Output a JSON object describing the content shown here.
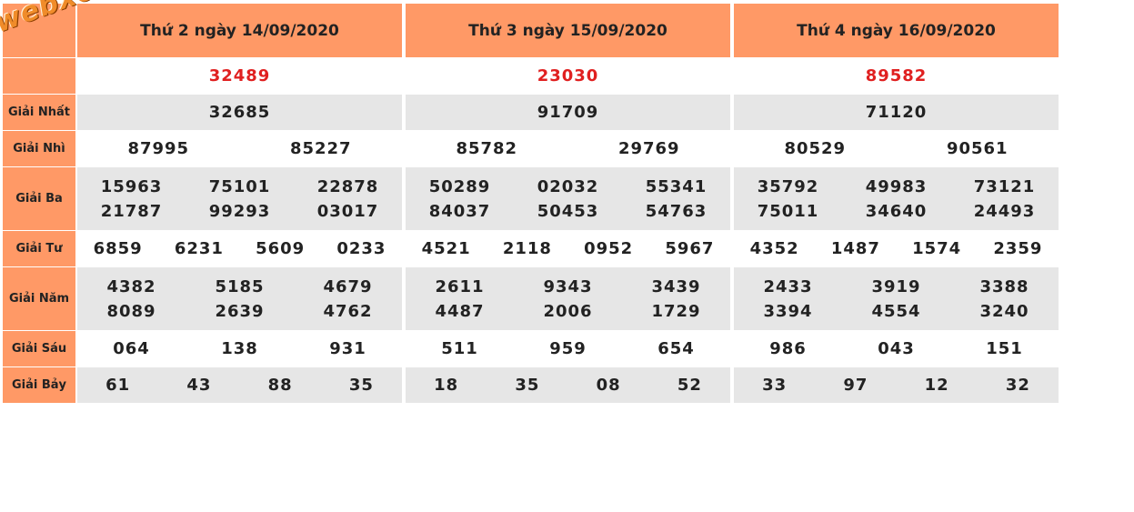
{
  "watermark": "webxoso.net",
  "labels": {
    "db": "",
    "nhat": "Giải Nhất",
    "nhi": "Giải Nhì",
    "ba": "Giải Ba",
    "tu": "Giải Tư",
    "nam": "Giải Năm",
    "sau": "Giải Sáu",
    "bay": "Giải Bảy"
  },
  "days": [
    {
      "header": "Thứ 2 ngày 14/09/2020",
      "db": "32489",
      "nhat": "32685",
      "nhi": [
        "87995",
        "85227"
      ],
      "ba": [
        "15963",
        "75101",
        "22878",
        "21787",
        "99293",
        "03017"
      ],
      "tu": [
        "6859",
        "6231",
        "5609",
        "0233"
      ],
      "nam": [
        "4382",
        "5185",
        "4679",
        "8089",
        "2639",
        "4762"
      ],
      "sau": [
        "064",
        "138",
        "931"
      ],
      "bay": [
        "61",
        "43",
        "88",
        "35"
      ]
    },
    {
      "header": "Thứ 3 ngày 15/09/2020",
      "db": "23030",
      "nhat": "91709",
      "nhi": [
        "85782",
        "29769"
      ],
      "ba": [
        "50289",
        "02032",
        "55341",
        "84037",
        "50453",
        "54763"
      ],
      "tu": [
        "4521",
        "2118",
        "0952",
        "5967"
      ],
      "nam": [
        "2611",
        "9343",
        "3439",
        "4487",
        "2006",
        "1729"
      ],
      "sau": [
        "511",
        "959",
        "654"
      ],
      "bay": [
        "18",
        "35",
        "08",
        "52"
      ]
    },
    {
      "header": "Thứ 4 ngày 16/09/2020",
      "db": "89582",
      "nhat": "71120",
      "nhi": [
        "80529",
        "90561"
      ],
      "ba": [
        "35792",
        "49983",
        "73121",
        "75011",
        "34640",
        "24493"
      ],
      "tu": [
        "4352",
        "1487",
        "1574",
        "2359"
      ],
      "nam": [
        "2433",
        "3919",
        "3388",
        "3394",
        "4554",
        "3240"
      ],
      "sau": [
        "986",
        "043",
        "151"
      ],
      "bay": [
        "33",
        "97",
        "12",
        "32"
      ]
    }
  ],
  "colors": {
    "header_bg": "#FF9966",
    "stripe_bg": "#E6E6E6",
    "special_prize": "#E02020"
  }
}
